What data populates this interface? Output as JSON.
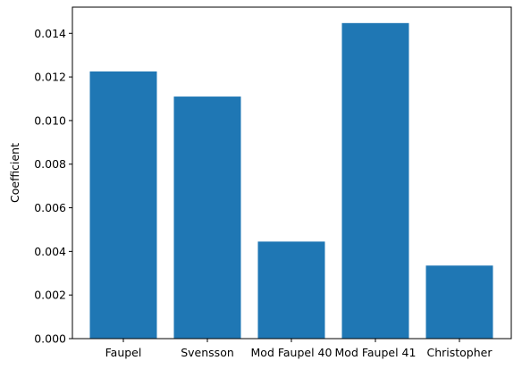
{
  "chart_data": {
    "type": "bar",
    "categories": [
      "Faupel",
      "Svensson",
      "Mod Faupel 40",
      "Mod Faupel 41",
      "Christopher"
    ],
    "values": [
      0.01225,
      0.0111,
      0.00445,
      0.01447,
      0.00335
    ],
    "title": "",
    "xlabel": "",
    "ylabel": "Coefficient",
    "ylim": [
      0,
      0.0152
    ],
    "yticks": [
      0.0,
      0.002,
      0.004,
      0.006,
      0.008,
      0.01,
      0.012,
      0.014
    ],
    "ytick_labels": [
      "0.000",
      "0.002",
      "0.004",
      "0.006",
      "0.008",
      "0.010",
      "0.012",
      "0.014"
    ],
    "grid": false,
    "bar_color": "#1f77b4"
  }
}
